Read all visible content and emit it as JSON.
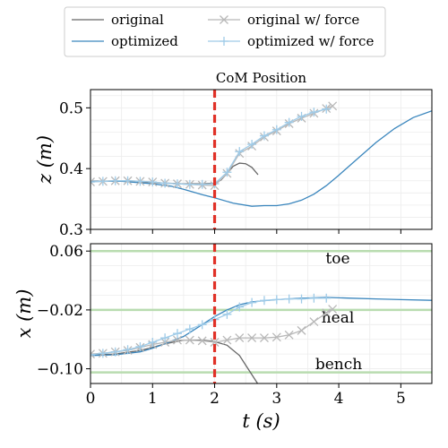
{
  "legend": {
    "entries": [
      {
        "label": "original",
        "color": "#666666",
        "marker": "none"
      },
      {
        "label": "optimized",
        "color": "#3a86bd",
        "marker": "none"
      },
      {
        "label": "original w/ force",
        "color": "#b8b8b8",
        "marker": "x"
      },
      {
        "label": "optimized w/ force",
        "color": "#9fcbe8",
        "marker": "+"
      }
    ]
  },
  "chart_data": [
    {
      "type": "line",
      "title": "CoM Position",
      "xlabel": "",
      "ylabel": "z (m)",
      "xlim": [
        0,
        5.5
      ],
      "ylim": [
        0.3,
        0.53
      ],
      "xticks": [
        0,
        1,
        2,
        3,
        4,
        5
      ],
      "yticks": [
        0.3,
        0.4,
        0.5
      ],
      "ytick_labels": [
        "0.3",
        "0.4",
        "0.5"
      ],
      "grid": true,
      "vline": {
        "x": 2.0,
        "color": "#e03127",
        "style": "dashed"
      },
      "series": [
        {
          "name": "original",
          "color": "#666666",
          "marker": "none",
          "x": [
            0,
            0.5,
            1.0,
            1.5,
            1.8,
            2.0,
            2.1,
            2.2,
            2.3,
            2.4,
            2.5,
            2.6,
            2.7
          ],
          "y": [
            0.379,
            0.38,
            0.377,
            0.375,
            0.375,
            0.376,
            0.381,
            0.392,
            0.404,
            0.409,
            0.408,
            0.402,
            0.39
          ]
        },
        {
          "name": "optimized",
          "color": "#3a86bd",
          "marker": "none",
          "x": [
            0,
            0.5,
            1.0,
            1.3,
            1.5,
            1.8,
            2.0,
            2.3,
            2.6,
            2.8,
            3.0,
            3.2,
            3.4,
            3.6,
            3.8,
            4.0,
            4.3,
            4.6,
            4.9,
            5.2,
            5.5
          ],
          "y": [
            0.379,
            0.379,
            0.375,
            0.371,
            0.366,
            0.357,
            0.352,
            0.343,
            0.338,
            0.339,
            0.339,
            0.342,
            0.348,
            0.358,
            0.372,
            0.389,
            0.416,
            0.443,
            0.466,
            0.484,
            0.495
          ]
        },
        {
          "name": "original w/ force",
          "color": "#b8b8b8",
          "marker": "x",
          "x": [
            0,
            0.2,
            0.4,
            0.6,
            0.8,
            1.0,
            1.2,
            1.4,
            1.6,
            1.8,
            2.0,
            2.2,
            2.4,
            2.6,
            2.8,
            3.0,
            3.2,
            3.4,
            3.6,
            3.8,
            3.9
          ],
          "y": [
            0.378,
            0.379,
            0.38,
            0.38,
            0.379,
            0.378,
            0.376,
            0.375,
            0.374,
            0.373,
            0.372,
            0.392,
            0.425,
            0.437,
            0.452,
            0.462,
            0.474,
            0.483,
            0.491,
            0.499,
            0.503
          ]
        },
        {
          "name": "optimized w/ force",
          "color": "#9fcbe8",
          "marker": "+",
          "x": [
            0,
            0.2,
            0.4,
            0.6,
            0.8,
            1.0,
            1.2,
            1.4,
            1.6,
            1.8,
            2.0,
            2.2,
            2.4,
            2.6,
            2.8,
            3.0,
            3.2,
            3.4,
            3.6,
            3.8
          ],
          "y": [
            0.378,
            0.379,
            0.38,
            0.38,
            0.379,
            0.378,
            0.376,
            0.375,
            0.374,
            0.374,
            0.375,
            0.394,
            0.428,
            0.44,
            0.454,
            0.464,
            0.476,
            0.486,
            0.493,
            0.498
          ]
        }
      ]
    },
    {
      "type": "line",
      "title": "",
      "xlabel": "t (s)",
      "ylabel": "x (m)",
      "xlim": [
        0,
        5.5
      ],
      "ylim": [
        -0.12,
        0.07
      ],
      "xticks": [
        0,
        1,
        2,
        3,
        4,
        5
      ],
      "xtick_labels": [
        "0",
        "1",
        "2",
        "3",
        "4",
        "5"
      ],
      "yticks": [
        0.06,
        -0.02,
        -0.1
      ],
      "ytick_labels": [
        "0.06",
        "−0.02",
        "−0.10"
      ],
      "grid": true,
      "vline": {
        "x": 2.0,
        "color": "#e03127",
        "style": "dashed"
      },
      "hlines": [
        {
          "y": 0.06,
          "label": "toe",
          "color": "#b9dcb0"
        },
        {
          "y": -0.02,
          "label": "heal",
          "color": "#b9dcb0"
        },
        {
          "y": -0.105,
          "label": "bench",
          "color": "#b9dcb0"
        }
      ],
      "series": [
        {
          "name": "original",
          "color": "#666666",
          "marker": "none",
          "x": [
            0,
            0.4,
            0.8,
            1.0,
            1.2,
            1.5,
            1.8,
            2.0,
            2.2,
            2.4,
            2.5,
            2.6,
            2.7
          ],
          "y": [
            -0.081,
            -0.08,
            -0.075,
            -0.071,
            -0.066,
            -0.061,
            -0.061,
            -0.063,
            -0.068,
            -0.082,
            -0.095,
            -0.108,
            -0.121
          ]
        },
        {
          "name": "optimized",
          "color": "#3a86bd",
          "marker": "none",
          "x": [
            0,
            0.4,
            0.8,
            1.0,
            1.2,
            1.5,
            1.8,
            2.0,
            2.2,
            2.4,
            2.6,
            3.0,
            3.4,
            3.8,
            4.2,
            4.6,
            5.0,
            5.5
          ],
          "y": [
            -0.082,
            -0.081,
            -0.077,
            -0.072,
            -0.066,
            -0.056,
            -0.04,
            -0.029,
            -0.02,
            -0.013,
            -0.009,
            -0.006,
            -0.004,
            -0.003,
            -0.004,
            -0.005,
            -0.006,
            -0.007
          ]
        },
        {
          "name": "original w/ force",
          "color": "#b8b8b8",
          "marker": "x",
          "x": [
            0,
            0.2,
            0.4,
            0.6,
            0.8,
            1.0,
            1.2,
            1.4,
            1.6,
            1.8,
            2.0,
            2.2,
            2.4,
            2.6,
            2.8,
            3.0,
            3.2,
            3.4,
            3.6,
            3.8,
            3.9
          ],
          "y": [
            -0.08,
            -0.079,
            -0.077,
            -0.075,
            -0.071,
            -0.067,
            -0.064,
            -0.061,
            -0.061,
            -0.062,
            -0.064,
            -0.061,
            -0.058,
            -0.058,
            -0.058,
            -0.057,
            -0.054,
            -0.048,
            -0.036,
            -0.024,
            -0.019
          ]
        },
        {
          "name": "optimized w/ force",
          "color": "#9fcbe8",
          "marker": "+",
          "x": [
            0,
            0.2,
            0.4,
            0.6,
            0.8,
            1.0,
            1.2,
            1.4,
            1.6,
            1.8,
            2.0,
            2.2,
            2.4,
            2.6,
            2.8,
            3.0,
            3.2,
            3.4,
            3.6,
            3.8
          ],
          "y": [
            -0.081,
            -0.079,
            -0.077,
            -0.074,
            -0.07,
            -0.064,
            -0.058,
            -0.052,
            -0.046,
            -0.04,
            -0.033,
            -0.026,
            -0.016,
            -0.01,
            -0.007,
            -0.006,
            -0.005,
            -0.005,
            -0.004,
            -0.004
          ]
        }
      ]
    }
  ]
}
